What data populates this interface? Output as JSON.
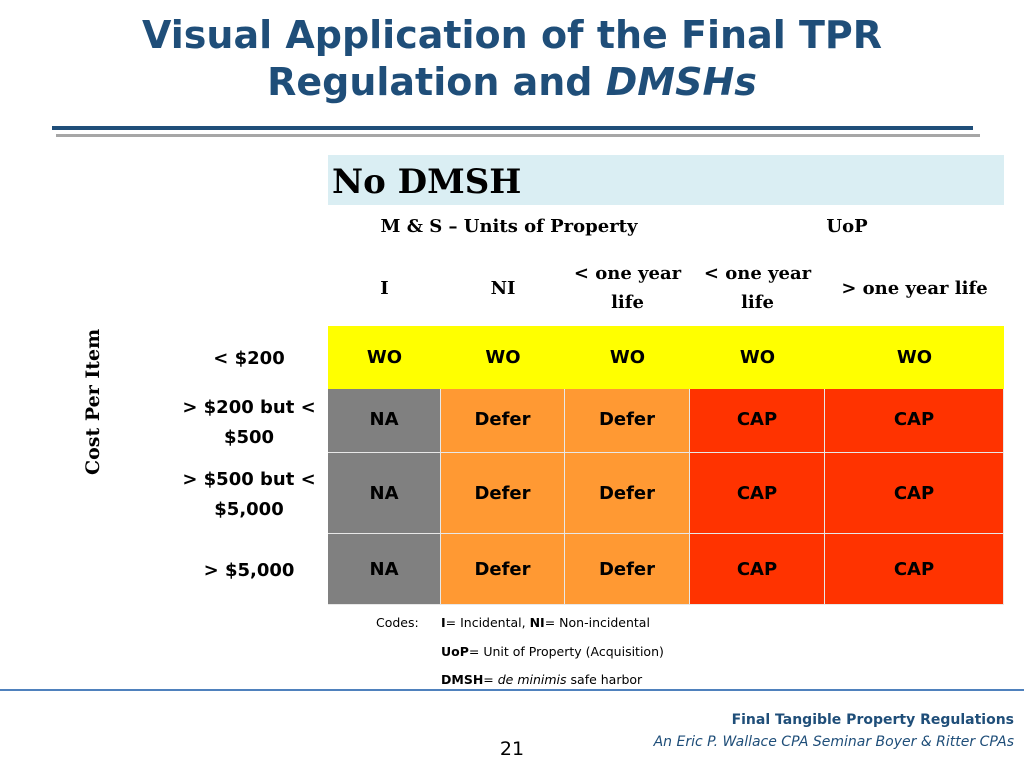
{
  "title": {
    "line1": "Visual Application of the Final TPR",
    "line2_prefix": "Regulation and ",
    "line2_emph": "DMSHs"
  },
  "table": {
    "section_header": "No DMSH",
    "group_header_ms": "M & S – Units of Property",
    "group_header_uop": "UoP",
    "columns": [
      "I",
      "NI",
      "< one year life",
      "< one year life",
      "> one year life"
    ],
    "row_axis_label": "Cost Per Item",
    "rows": [
      {
        "label": "< $200",
        "cells": [
          "WO",
          "WO",
          "WO",
          "WO",
          "WO"
        ]
      },
      {
        "label": "> $200 but < $500",
        "cells": [
          "NA",
          "Defer",
          "Defer",
          "CAP",
          "CAP"
        ]
      },
      {
        "label": "> $500 but < $5,000",
        "cells": [
          "NA",
          "Defer",
          "Defer",
          "CAP",
          "CAP"
        ]
      },
      {
        "label": "> $5,000",
        "cells": [
          "NA",
          "Defer",
          "Defer",
          "CAP",
          "CAP"
        ]
      }
    ],
    "colors": {
      "WO": "#ffff00",
      "NA": "#808080",
      "Defer": "#ff9933",
      "CAP": "#ff3300"
    }
  },
  "codes": {
    "label": "Codes:",
    "line1": [
      {
        "text": "I",
        "bold": true
      },
      {
        "text": "= Incidental, ",
        "bold": false
      },
      {
        "text": "NI",
        "bold": true
      },
      {
        "text": "= Non-incidental",
        "bold": false
      }
    ],
    "line2": [
      {
        "text": "UoP",
        "bold": true
      },
      {
        "text": "= Unit of Property (Acquisition)",
        "bold": false
      }
    ],
    "line3": [
      {
        "text": "DMSH",
        "bold": true
      },
      {
        "text": "= ",
        "bold": false
      },
      {
        "text": "de minimis",
        "italic": true
      },
      {
        "text": " safe harbor",
        "bold": false
      }
    ]
  },
  "footer": {
    "page_number": "21",
    "line1": "Final Tangible Property Regulations",
    "line2": "An Eric P. Wallace CPA Seminar Boyer & Ritter CPAs"
  },
  "theme": {
    "title_color": "#1f4e79",
    "section_header_bg": "#daeef3",
    "footer_rule": "#4f81bd"
  }
}
